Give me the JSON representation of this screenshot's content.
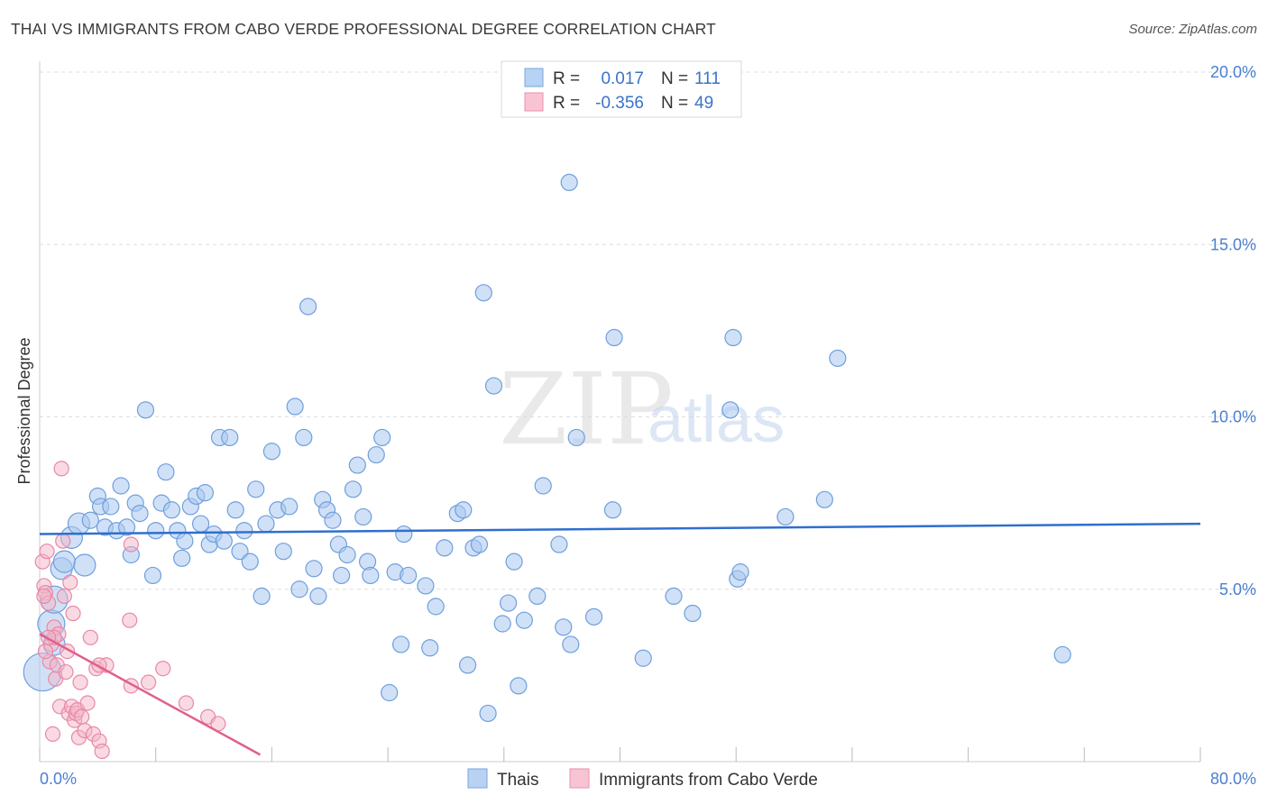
{
  "header": {
    "title": "THAI VS IMMIGRANTS FROM CABO VERDE PROFESSIONAL DEGREE CORRELATION CHART",
    "source": "Source: ZipAtlas.com"
  },
  "watermark": {
    "part1": "ZIP",
    "part2": "atlas"
  },
  "colors": {
    "blue_fill": "#a9c8f0",
    "blue_stroke": "#6f9fdc",
    "blue_line": "#2f6fcf",
    "pink_fill": "#f4b6c8",
    "pink_stroke": "#e987a6",
    "pink_line": "#e0608a",
    "grid": "#dddddd",
    "axis_text": "#4a7fd0"
  },
  "legend": {
    "rows": [
      {
        "r_label": "R =",
        "r_value": "0.017",
        "n_label": "N =",
        "n_value": "111",
        "color": "blue"
      },
      {
        "r_label": "R =",
        "r_value": "-0.356",
        "n_label": "N =",
        "n_value": "49",
        "color": "pink"
      }
    ]
  },
  "chart_data": {
    "type": "scatter",
    "title": "THAI VS IMMIGRANTS FROM CABO VERDE PROFESSIONAL DEGREE CORRELATION CHART",
    "xlabel": "",
    "ylabel": "Professional Degree",
    "xlim": [
      0,
      80
    ],
    "ylim": [
      0,
      20
    ],
    "x_tick_labels": [
      "0.0%",
      "80.0%"
    ],
    "y_ticks": [
      5,
      10,
      15,
      20
    ],
    "y_tick_labels": [
      "5.0%",
      "10.0%",
      "15.0%",
      "20.0%"
    ],
    "legend_position": "bottom-center",
    "series": [
      {
        "name": "Thais",
        "color": "blue",
        "trend": {
          "x": [
            0,
            80
          ],
          "y": [
            6.6,
            6.9
          ]
        },
        "points": [
          [
            0.2,
            2.6,
            3
          ],
          [
            0.8,
            4.0,
            2
          ],
          [
            1.0,
            4.7,
            2
          ],
          [
            1.0,
            3.4,
            1
          ],
          [
            1.5,
            5.6,
            1
          ],
          [
            1.7,
            5.8,
            1
          ],
          [
            2.2,
            6.5,
            1
          ],
          [
            2.7,
            6.9,
            1
          ],
          [
            3.1,
            5.7,
            1
          ],
          [
            3.5,
            7.0,
            0
          ],
          [
            4.0,
            7.7,
            0
          ],
          [
            4.2,
            7.4,
            0
          ],
          [
            4.5,
            6.8,
            0
          ],
          [
            4.9,
            7.4,
            0
          ],
          [
            5.3,
            6.7,
            0
          ],
          [
            5.6,
            8.0,
            0
          ],
          [
            6.0,
            6.8,
            0
          ],
          [
            6.3,
            6.0,
            0
          ],
          [
            6.6,
            7.5,
            0
          ],
          [
            6.9,
            7.2,
            0
          ],
          [
            7.3,
            10.2,
            0
          ],
          [
            7.8,
            5.4,
            0
          ],
          [
            8.0,
            6.7,
            0
          ],
          [
            8.4,
            7.5,
            0
          ],
          [
            8.7,
            8.4,
            0
          ],
          [
            9.1,
            7.3,
            0
          ],
          [
            9.5,
            6.7,
            0
          ],
          [
            9.8,
            5.9,
            0
          ],
          [
            10.0,
            6.4,
            0
          ],
          [
            10.4,
            7.4,
            0
          ],
          [
            10.8,
            7.7,
            0
          ],
          [
            11.1,
            6.9,
            0
          ],
          [
            11.4,
            7.8,
            0
          ],
          [
            11.7,
            6.3,
            0
          ],
          [
            12.0,
            6.6,
            0
          ],
          [
            12.4,
            9.4,
            0
          ],
          [
            12.7,
            6.4,
            0
          ],
          [
            13.1,
            9.4,
            0
          ],
          [
            13.5,
            7.3,
            0
          ],
          [
            13.8,
            6.1,
            0
          ],
          [
            14.1,
            6.7,
            0
          ],
          [
            14.5,
            5.8,
            0
          ],
          [
            14.9,
            7.9,
            0
          ],
          [
            15.3,
            4.8,
            0
          ],
          [
            15.6,
            6.9,
            0
          ],
          [
            16.0,
            9.0,
            0
          ],
          [
            16.4,
            7.3,
            0
          ],
          [
            16.8,
            6.1,
            0
          ],
          [
            17.2,
            7.4,
            0
          ],
          [
            17.6,
            10.3,
            0
          ],
          [
            17.9,
            5.0,
            0
          ],
          [
            18.2,
            9.4,
            0
          ],
          [
            18.5,
            13.2,
            0
          ],
          [
            18.9,
            5.6,
            0
          ],
          [
            19.2,
            4.8,
            0
          ],
          [
            19.5,
            7.6,
            0
          ],
          [
            19.8,
            7.3,
            0
          ],
          [
            20.2,
            7.0,
            0
          ],
          [
            20.6,
            6.3,
            0
          ],
          [
            20.8,
            5.4,
            0
          ],
          [
            21.2,
            6.0,
            0
          ],
          [
            21.6,
            7.9,
            0
          ],
          [
            21.9,
            8.6,
            0
          ],
          [
            22.3,
            7.1,
            0
          ],
          [
            22.6,
            5.8,
            0
          ],
          [
            22.8,
            5.4,
            0
          ],
          [
            23.2,
            8.9,
            0
          ],
          [
            23.6,
            9.4,
            0
          ],
          [
            24.1,
            2.0,
            0
          ],
          [
            24.5,
            5.5,
            0
          ],
          [
            24.9,
            3.4,
            0
          ],
          [
            25.1,
            6.6,
            0
          ],
          [
            25.4,
            5.4,
            0
          ],
          [
            26.6,
            5.1,
            0
          ],
          [
            26.9,
            3.3,
            0
          ],
          [
            27.3,
            4.5,
            0
          ],
          [
            27.9,
            6.2,
            0
          ],
          [
            28.8,
            7.2,
            0
          ],
          [
            29.2,
            7.3,
            0
          ],
          [
            29.5,
            2.8,
            0
          ],
          [
            29.9,
            6.2,
            0
          ],
          [
            30.3,
            6.3,
            0
          ],
          [
            30.6,
            13.6,
            0
          ],
          [
            30.9,
            1.4,
            0
          ],
          [
            31.3,
            10.9,
            0
          ],
          [
            31.9,
            4.0,
            0
          ],
          [
            32.3,
            4.6,
            0
          ],
          [
            32.7,
            5.8,
            0
          ],
          [
            33.0,
            2.2,
            0
          ],
          [
            33.4,
            4.1,
            0
          ],
          [
            34.3,
            4.8,
            0
          ],
          [
            34.7,
            8.0,
            0
          ],
          [
            35.8,
            6.3,
            0
          ],
          [
            36.1,
            3.9,
            0
          ],
          [
            36.5,
            16.8,
            0
          ],
          [
            36.6,
            3.4,
            0
          ],
          [
            37.0,
            9.4,
            0
          ],
          [
            38.2,
            4.2,
            0
          ],
          [
            39.5,
            7.3,
            0
          ],
          [
            39.6,
            12.3,
            0
          ],
          [
            41.6,
            3.0,
            0
          ],
          [
            43.7,
            4.8,
            0
          ],
          [
            45.0,
            4.3,
            0
          ],
          [
            47.6,
            10.2,
            0
          ],
          [
            47.8,
            12.3,
            0
          ],
          [
            48.1,
            5.3,
            0
          ],
          [
            48.3,
            5.5,
            0
          ],
          [
            51.4,
            7.1,
            0
          ],
          [
            54.1,
            7.6,
            0
          ],
          [
            55.0,
            11.7,
            0
          ],
          [
            70.5,
            3.1,
            0
          ]
        ]
      },
      {
        "name": "Immigrants from Cabo Verde",
        "color": "pink",
        "trend": {
          "x": [
            0,
            15.2
          ],
          "y": [
            3.7,
            0.2
          ]
        },
        "points": [
          [
            0.2,
            5.8
          ],
          [
            0.3,
            5.1
          ],
          [
            0.4,
            4.9
          ],
          [
            0.5,
            6.1
          ],
          [
            0.6,
            4.6
          ],
          [
            0.7,
            2.9
          ],
          [
            0.8,
            3.4
          ],
          [
            0.9,
            0.8
          ],
          [
            1.0,
            3.9
          ],
          [
            1.1,
            2.4
          ],
          [
            1.2,
            2.8
          ],
          [
            1.3,
            3.7
          ],
          [
            1.4,
            1.6
          ],
          [
            1.5,
            8.5
          ],
          [
            1.6,
            6.4
          ],
          [
            1.7,
            4.8
          ],
          [
            1.8,
            2.6
          ],
          [
            1.9,
            3.2
          ],
          [
            2.0,
            1.4
          ],
          [
            2.1,
            5.2
          ],
          [
            2.2,
            1.6
          ],
          [
            2.3,
            4.3
          ],
          [
            2.4,
            1.2
          ],
          [
            2.5,
            1.4
          ],
          [
            2.6,
            1.5
          ],
          [
            2.7,
            0.7
          ],
          [
            2.8,
            2.3
          ],
          [
            2.9,
            1.3
          ],
          [
            3.1,
            0.9
          ],
          [
            3.3,
            1.7
          ],
          [
            3.5,
            3.6
          ],
          [
            3.7,
            0.8
          ],
          [
            3.9,
            2.7
          ],
          [
            4.1,
            0.6
          ],
          [
            4.3,
            0.3
          ],
          [
            4.6,
            2.8
          ],
          [
            6.2,
            4.1
          ],
          [
            6.3,
            6.3
          ],
          [
            6.3,
            2.2
          ],
          [
            7.5,
            2.3
          ],
          [
            8.5,
            2.7
          ],
          [
            10.1,
            1.7
          ],
          [
            11.6,
            1.3
          ],
          [
            12.3,
            1.1
          ],
          [
            0.4,
            3.2
          ],
          [
            1.0,
            3.6
          ],
          [
            4.1,
            2.8
          ],
          [
            0.3,
            4.8
          ],
          [
            0.6,
            3.6
          ]
        ]
      }
    ]
  }
}
